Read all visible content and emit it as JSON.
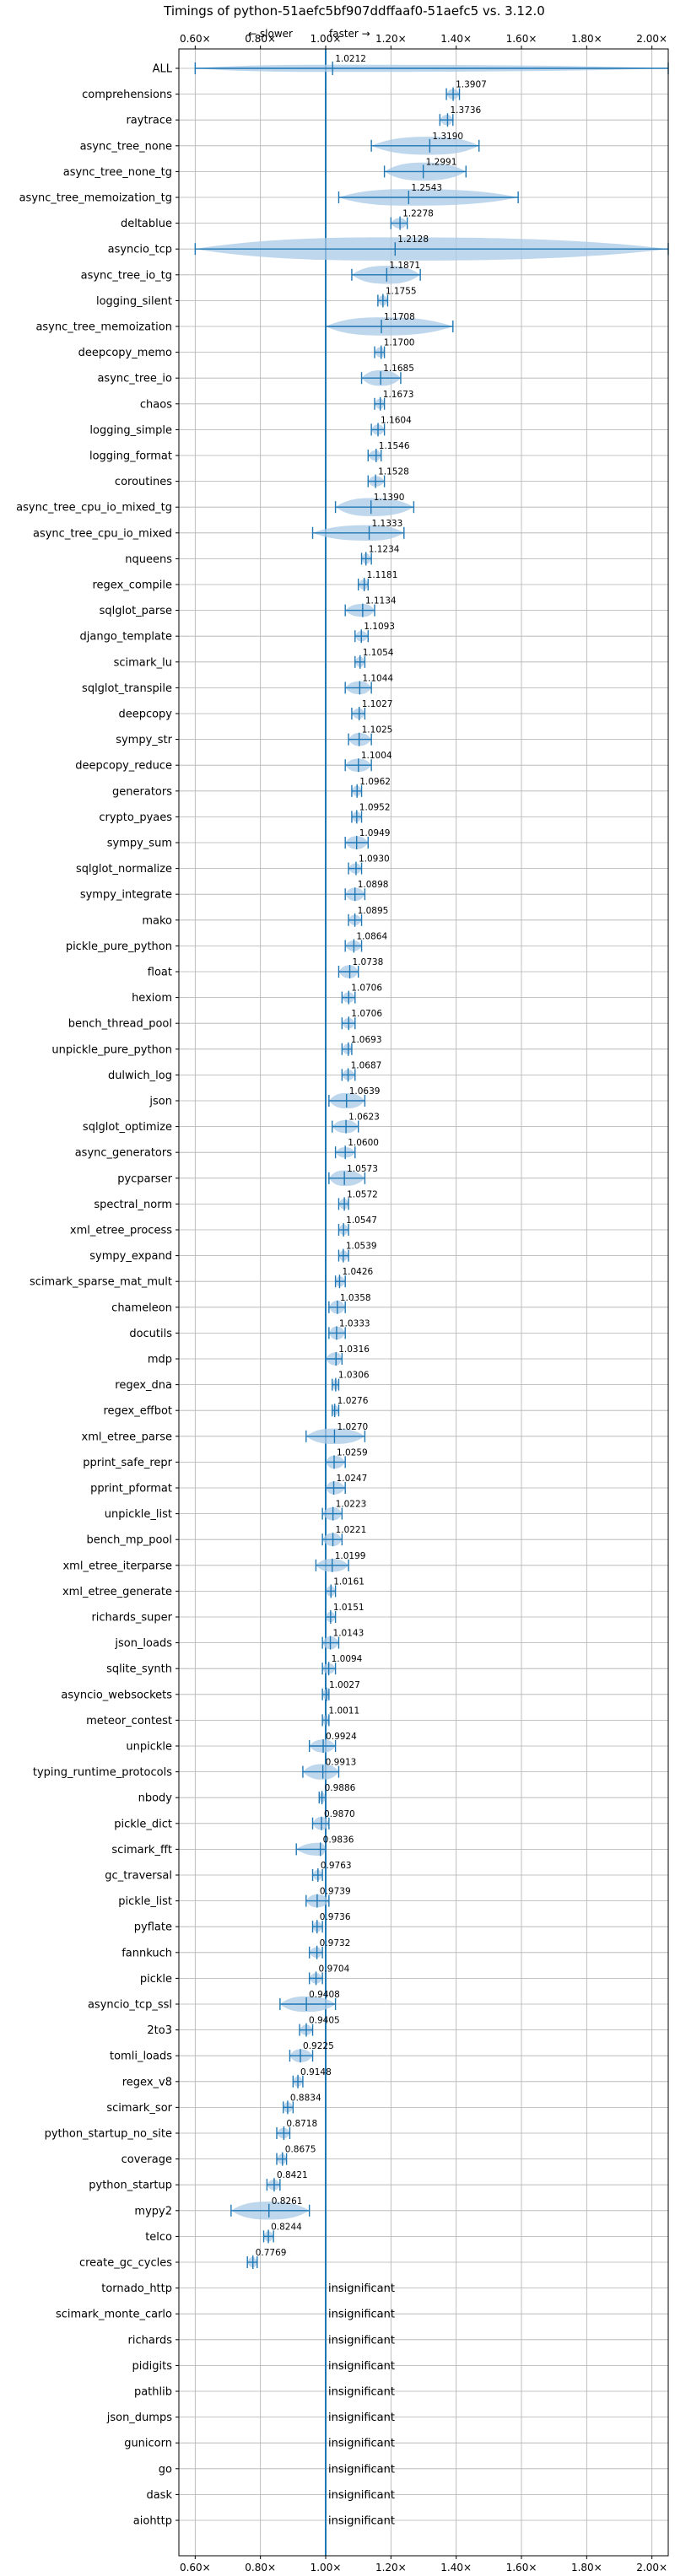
{
  "colors": {
    "violin": "#aac9e6",
    "line": "#1f77b4",
    "median": "#ff7f7f",
    "grid": "#b0b0b0",
    "axis": "#000000"
  },
  "chart_data": {
    "type": "violin",
    "title": "Timings of python-51aefc5bf907ddffaaf0-51aefc5 vs. 3.12.0",
    "annotation_left": "← slower",
    "annotation_right": "faster →",
    "xlim": [
      0.55,
      2.05
    ],
    "xticks": [
      0.6,
      0.8,
      1.0,
      1.2,
      1.4,
      1.6,
      1.8,
      2.0
    ],
    "xtick_labels": [
      "0.60×",
      "0.80×",
      "1.00×",
      "1.20×",
      "1.40×",
      "1.60×",
      "1.80×",
      "2.00×"
    ],
    "reference_line": 1.0,
    "grid": true,
    "benchmarks": [
      {
        "name": "ALL",
        "value": 1.0212,
        "label": "1.0212",
        "min": 0.6,
        "max": 2.05,
        "width": 0.14
      },
      {
        "name": "comprehensions",
        "value": 1.3907,
        "label": "1.3907",
        "min": 1.37,
        "max": 1.41,
        "width": 0.2
      },
      {
        "name": "raytrace",
        "value": 1.3736,
        "label": "1.3736",
        "min": 1.35,
        "max": 1.39,
        "width": 0.2
      },
      {
        "name": "async_tree_none",
        "value": 1.319,
        "label": "1.3190",
        "min": 1.14,
        "max": 1.47,
        "width": 0.35
      },
      {
        "name": "async_tree_none_tg",
        "value": 1.2991,
        "label": "1.2991",
        "min": 1.18,
        "max": 1.43,
        "width": 0.35
      },
      {
        "name": "async_tree_memoization_tg",
        "value": 1.2543,
        "label": "1.2543",
        "min": 1.04,
        "max": 1.59,
        "width": 0.32
      },
      {
        "name": "deltablue",
        "value": 1.2278,
        "label": "1.2278",
        "min": 1.2,
        "max": 1.25,
        "width": 0.2
      },
      {
        "name": "asyncio_tcp",
        "value": 1.2128,
        "label": "1.2128",
        "min": 0.6,
        "max": 2.05,
        "width": 0.45
      },
      {
        "name": "async_tree_io_tg",
        "value": 1.1871,
        "label": "1.1871",
        "min": 1.08,
        "max": 1.29,
        "width": 0.35
      },
      {
        "name": "logging_silent",
        "value": 1.1755,
        "label": "1.1755",
        "min": 1.16,
        "max": 1.19,
        "width": 0.2
      },
      {
        "name": "async_tree_memoization",
        "value": 1.1708,
        "label": "1.1708",
        "min": 1.0,
        "max": 1.39,
        "width": 0.35
      },
      {
        "name": "deepcopy_memo",
        "value": 1.17,
        "label": "1.1700",
        "min": 1.15,
        "max": 1.18,
        "width": 0.2
      },
      {
        "name": "async_tree_io",
        "value": 1.1685,
        "label": "1.1685",
        "min": 1.11,
        "max": 1.23,
        "width": 0.3
      },
      {
        "name": "chaos",
        "value": 1.1673,
        "label": "1.1673",
        "min": 1.15,
        "max": 1.18,
        "width": 0.2
      },
      {
        "name": "logging_simple",
        "value": 1.1604,
        "label": "1.1604",
        "min": 1.14,
        "max": 1.18,
        "width": 0.2
      },
      {
        "name": "logging_format",
        "value": 1.1546,
        "label": "1.1546",
        "min": 1.13,
        "max": 1.17,
        "width": 0.2
      },
      {
        "name": "coroutines",
        "value": 1.1528,
        "label": "1.1528",
        "min": 1.13,
        "max": 1.18,
        "width": 0.2
      },
      {
        "name": "async_tree_cpu_io_mixed_tg",
        "value": 1.139,
        "label": "1.1390",
        "min": 1.03,
        "max": 1.27,
        "width": 0.35
      },
      {
        "name": "async_tree_cpu_io_mixed",
        "value": 1.1333,
        "label": "1.1333",
        "min": 0.96,
        "max": 1.24,
        "width": 0.3
      },
      {
        "name": "nqueens",
        "value": 1.1234,
        "label": "1.1234",
        "min": 1.11,
        "max": 1.14,
        "width": 0.2
      },
      {
        "name": "regex_compile",
        "value": 1.1181,
        "label": "1.1181",
        "min": 1.1,
        "max": 1.13,
        "width": 0.2
      },
      {
        "name": "sqlglot_parse",
        "value": 1.1134,
        "label": "1.1134",
        "min": 1.06,
        "max": 1.15,
        "width": 0.25
      },
      {
        "name": "django_template",
        "value": 1.1093,
        "label": "1.1093",
        "min": 1.09,
        "max": 1.13,
        "width": 0.2
      },
      {
        "name": "scimark_lu",
        "value": 1.1054,
        "label": "1.1054",
        "min": 1.09,
        "max": 1.12,
        "width": 0.2
      },
      {
        "name": "sqlglot_transpile",
        "value": 1.1044,
        "label": "1.1044",
        "min": 1.06,
        "max": 1.14,
        "width": 0.25
      },
      {
        "name": "deepcopy",
        "value": 1.1027,
        "label": "1.1027",
        "min": 1.08,
        "max": 1.12,
        "width": 0.2
      },
      {
        "name": "sympy_str",
        "value": 1.1025,
        "label": "1.1025",
        "min": 1.07,
        "max": 1.14,
        "width": 0.25
      },
      {
        "name": "deepcopy_reduce",
        "value": 1.1004,
        "label": "1.1004",
        "min": 1.06,
        "max": 1.14,
        "width": 0.25
      },
      {
        "name": "generators",
        "value": 1.0962,
        "label": "1.0962",
        "min": 1.08,
        "max": 1.11,
        "width": 0.2
      },
      {
        "name": "crypto_pyaes",
        "value": 1.0952,
        "label": "1.0952",
        "min": 1.08,
        "max": 1.11,
        "width": 0.2
      },
      {
        "name": "sympy_sum",
        "value": 1.0949,
        "label": "1.0949",
        "min": 1.06,
        "max": 1.13,
        "width": 0.25
      },
      {
        "name": "sqlglot_normalize",
        "value": 1.093,
        "label": "1.0930",
        "min": 1.07,
        "max": 1.11,
        "width": 0.2
      },
      {
        "name": "sympy_integrate",
        "value": 1.0898,
        "label": "1.0898",
        "min": 1.06,
        "max": 1.12,
        "width": 0.25
      },
      {
        "name": "mako",
        "value": 1.0895,
        "label": "1.0895",
        "min": 1.07,
        "max": 1.11,
        "width": 0.2
      },
      {
        "name": "pickle_pure_python",
        "value": 1.0864,
        "label": "1.0864",
        "min": 1.06,
        "max": 1.11,
        "width": 0.2
      },
      {
        "name": "float",
        "value": 1.0738,
        "label": "1.0738",
        "min": 1.04,
        "max": 1.1,
        "width": 0.25
      },
      {
        "name": "hexiom",
        "value": 1.0706,
        "label": "1.0706",
        "min": 1.05,
        "max": 1.09,
        "width": 0.2
      },
      {
        "name": "bench_thread_pool",
        "value": 1.0706,
        "label": "1.0706",
        "min": 1.05,
        "max": 1.09,
        "width": 0.2
      },
      {
        "name": "unpickle_pure_python",
        "value": 1.0693,
        "label": "1.0693",
        "min": 1.05,
        "max": 1.08,
        "width": 0.2
      },
      {
        "name": "dulwich_log",
        "value": 1.0687,
        "label": "1.0687",
        "min": 1.05,
        "max": 1.09,
        "width": 0.2
      },
      {
        "name": "json",
        "value": 1.0639,
        "label": "1.0639",
        "min": 1.01,
        "max": 1.12,
        "width": 0.3
      },
      {
        "name": "sqlglot_optimize",
        "value": 1.0623,
        "label": "1.0623",
        "min": 1.02,
        "max": 1.1,
        "width": 0.25
      },
      {
        "name": "async_generators",
        "value": 1.06,
        "label": "1.0600",
        "min": 1.03,
        "max": 1.09,
        "width": 0.2
      },
      {
        "name": "pycparser",
        "value": 1.0573,
        "label": "1.0573",
        "min": 1.01,
        "max": 1.12,
        "width": 0.3
      },
      {
        "name": "spectral_norm",
        "value": 1.0572,
        "label": "1.0572",
        "min": 1.04,
        "max": 1.07,
        "width": 0.2
      },
      {
        "name": "xml_etree_process",
        "value": 1.0547,
        "label": "1.0547",
        "min": 1.04,
        "max": 1.07,
        "width": 0.2
      },
      {
        "name": "sympy_expand",
        "value": 1.0539,
        "label": "1.0539",
        "min": 1.04,
        "max": 1.07,
        "width": 0.2
      },
      {
        "name": "scimark_sparse_mat_mult",
        "value": 1.0426,
        "label": "1.0426",
        "min": 1.03,
        "max": 1.06,
        "width": 0.2
      },
      {
        "name": "chameleon",
        "value": 1.0358,
        "label": "1.0358",
        "min": 1.01,
        "max": 1.06,
        "width": 0.25
      },
      {
        "name": "docutils",
        "value": 1.0333,
        "label": "1.0333",
        "min": 1.01,
        "max": 1.06,
        "width": 0.25
      },
      {
        "name": "mdp",
        "value": 1.0316,
        "label": "1.0316",
        "min": 1.0,
        "max": 1.05,
        "width": 0.25
      },
      {
        "name": "regex_dna",
        "value": 1.0306,
        "label": "1.0306",
        "min": 1.02,
        "max": 1.04,
        "width": 0.2
      },
      {
        "name": "regex_effbot",
        "value": 1.0276,
        "label": "1.0276",
        "min": 1.02,
        "max": 1.04,
        "width": 0.2
      },
      {
        "name": "xml_etree_parse",
        "value": 1.027,
        "label": "1.0270",
        "min": 0.94,
        "max": 1.12,
        "width": 0.3
      },
      {
        "name": "pprint_safe_repr",
        "value": 1.0259,
        "label": "1.0259",
        "min": 1.0,
        "max": 1.06,
        "width": 0.25
      },
      {
        "name": "pprint_pformat",
        "value": 1.0247,
        "label": "1.0247",
        "min": 1.0,
        "max": 1.06,
        "width": 0.25
      },
      {
        "name": "unpickle_list",
        "value": 1.0223,
        "label": "1.0223",
        "min": 0.99,
        "max": 1.05,
        "width": 0.25
      },
      {
        "name": "bench_mp_pool",
        "value": 1.0221,
        "label": "1.0221",
        "min": 0.99,
        "max": 1.05,
        "width": 0.25
      },
      {
        "name": "xml_etree_iterparse",
        "value": 1.0199,
        "label": "1.0199",
        "min": 0.97,
        "max": 1.07,
        "width": 0.25
      },
      {
        "name": "xml_etree_generate",
        "value": 1.0161,
        "label": "1.0161",
        "min": 1.0,
        "max": 1.03,
        "width": 0.2
      },
      {
        "name": "richards_super",
        "value": 1.0151,
        "label": "1.0151",
        "min": 1.0,
        "max": 1.03,
        "width": 0.2
      },
      {
        "name": "json_loads",
        "value": 1.0143,
        "label": "1.0143",
        "min": 0.99,
        "max": 1.04,
        "width": 0.25
      },
      {
        "name": "sqlite_synth",
        "value": 1.0094,
        "label": "1.0094",
        "min": 0.99,
        "max": 1.03,
        "width": 0.2
      },
      {
        "name": "asyncio_websockets",
        "value": 1.0027,
        "label": "1.0027",
        "min": 0.99,
        "max": 1.01,
        "width": 0.2
      },
      {
        "name": "meteor_contest",
        "value": 1.0011,
        "label": "1.0011",
        "min": 0.99,
        "max": 1.01,
        "width": 0.2
      },
      {
        "name": "unpickle",
        "value": 0.9924,
        "label": "0.9924",
        "min": 0.95,
        "max": 1.03,
        "width": 0.25
      },
      {
        "name": "typing_runtime_protocols",
        "value": 0.9913,
        "label": "0.9913",
        "min": 0.93,
        "max": 1.04,
        "width": 0.3
      },
      {
        "name": "nbody",
        "value": 0.9886,
        "label": "0.9886",
        "min": 0.98,
        "max": 1.0,
        "width": 0.2
      },
      {
        "name": "pickle_dict",
        "value": 0.987,
        "label": "0.9870",
        "min": 0.96,
        "max": 1.01,
        "width": 0.25
      },
      {
        "name": "scimark_fft",
        "value": 0.9836,
        "label": "0.9836",
        "min": 0.91,
        "max": 1.0,
        "width": 0.25
      },
      {
        "name": "gc_traversal",
        "value": 0.9763,
        "label": "0.9763",
        "min": 0.96,
        "max": 0.99,
        "width": 0.2
      },
      {
        "name": "pickle_list",
        "value": 0.9739,
        "label": "0.9739",
        "min": 0.94,
        "max": 1.01,
        "width": 0.25
      },
      {
        "name": "pyflate",
        "value": 0.9736,
        "label": "0.9736",
        "min": 0.96,
        "max": 0.99,
        "width": 0.2
      },
      {
        "name": "fannkuch",
        "value": 0.9732,
        "label": "0.9732",
        "min": 0.95,
        "max": 0.99,
        "width": 0.2
      },
      {
        "name": "pickle",
        "value": 0.9704,
        "label": "0.9704",
        "min": 0.95,
        "max": 0.99,
        "width": 0.2
      },
      {
        "name": "asyncio_tcp_ssl",
        "value": 0.9408,
        "label": "0.9408",
        "min": 0.86,
        "max": 1.03,
        "width": 0.3
      },
      {
        "name": "2to3",
        "value": 0.9405,
        "label": "0.9405",
        "min": 0.92,
        "max": 0.96,
        "width": 0.2
      },
      {
        "name": "tomli_loads",
        "value": 0.9225,
        "label": "0.9225",
        "min": 0.89,
        "max": 0.96,
        "width": 0.25
      },
      {
        "name": "regex_v8",
        "value": 0.9148,
        "label": "0.9148",
        "min": 0.9,
        "max": 0.93,
        "width": 0.2
      },
      {
        "name": "scimark_sor",
        "value": 0.8834,
        "label": "0.8834",
        "min": 0.87,
        "max": 0.9,
        "width": 0.2
      },
      {
        "name": "python_startup_no_site",
        "value": 0.8718,
        "label": "0.8718",
        "min": 0.85,
        "max": 0.89,
        "width": 0.2
      },
      {
        "name": "coverage",
        "value": 0.8675,
        "label": "0.8675",
        "min": 0.85,
        "max": 0.88,
        "width": 0.2
      },
      {
        "name": "python_startup",
        "value": 0.8421,
        "label": "0.8421",
        "min": 0.82,
        "max": 0.86,
        "width": 0.2
      },
      {
        "name": "mypy2",
        "value": 0.8261,
        "label": "0.8261",
        "min": 0.71,
        "max": 0.95,
        "width": 0.35
      },
      {
        "name": "telco",
        "value": 0.8244,
        "label": "0.8244",
        "min": 0.81,
        "max": 0.84,
        "width": 0.2
      },
      {
        "name": "create_gc_cycles",
        "value": 0.7769,
        "label": "0.7769",
        "min": 0.76,
        "max": 0.79,
        "width": 0.2
      },
      {
        "name": "tornado_http",
        "label": "insignificant"
      },
      {
        "name": "scimark_monte_carlo",
        "label": "insignificant"
      },
      {
        "name": "richards",
        "label": "insignificant"
      },
      {
        "name": "pidigits",
        "label": "insignificant"
      },
      {
        "name": "pathlib",
        "label": "insignificant"
      },
      {
        "name": "json_dumps",
        "label": "insignificant"
      },
      {
        "name": "gunicorn",
        "label": "insignificant"
      },
      {
        "name": "go",
        "label": "insignificant"
      },
      {
        "name": "dask",
        "label": "insignificant"
      },
      {
        "name": "aiohttp",
        "label": "insignificant"
      }
    ]
  }
}
